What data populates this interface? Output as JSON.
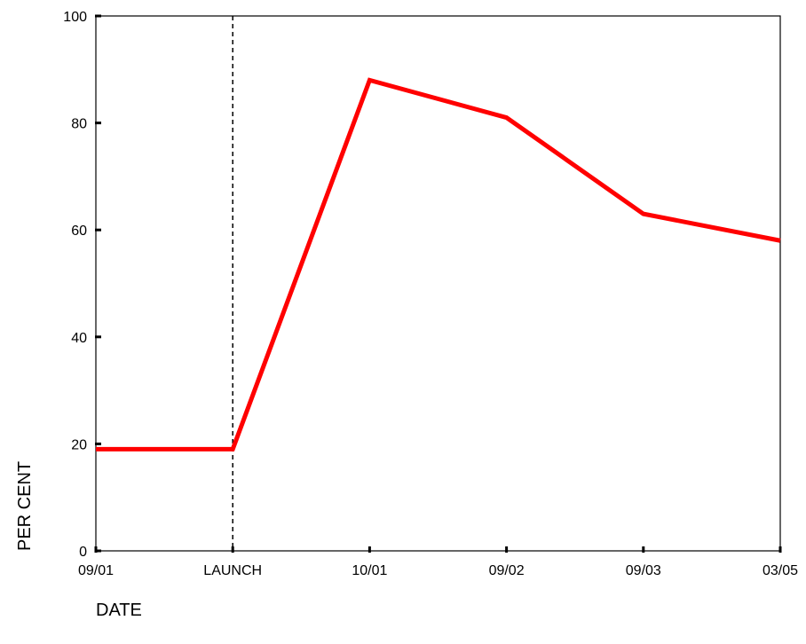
{
  "chart_data": {
    "type": "line",
    "title": "",
    "xlabel": "DATE",
    "ylabel": "PER CENT",
    "categories": [
      "09/01",
      "LAUNCH",
      "10/01",
      "09/02",
      "09/03",
      "03/05"
    ],
    "series": [
      {
        "values": [
          19,
          19,
          88,
          81,
          63,
          58
        ],
        "color": "#ff0000"
      }
    ],
    "ylim": [
      0,
      100
    ],
    "yticks": [
      0,
      20,
      40,
      60,
      80,
      100
    ],
    "reference_line": {
      "category": "LAUNCH",
      "style": "dashed",
      "color": "#000000"
    },
    "grid": false,
    "legend": "none"
  }
}
